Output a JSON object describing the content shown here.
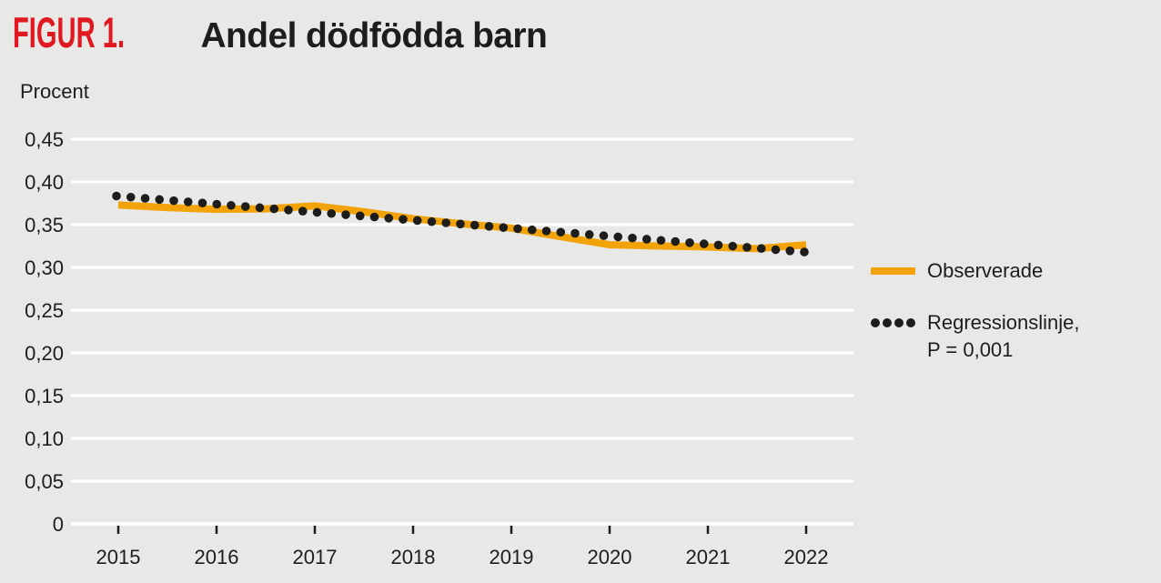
{
  "header": {
    "figure_label": "FIGUR 1.",
    "title": "Andel dödfödda barn"
  },
  "legend": {
    "observed_label": "Observerade",
    "regression_label_line1": "Regressionslinje,",
    "regression_label_line2": "P = 0,001"
  },
  "colors": {
    "background": "#e8e8e7",
    "gridline": "#ffffff",
    "observed_line": "#f2a30a",
    "regression_dots": "#1d1d1b",
    "figure_label_red": "#e0181f",
    "text": "#1d1d1b"
  },
  "chart_data": {
    "type": "line",
    "title": "Andel dödfödda barn",
    "ylabel": "Procent",
    "xlabel": "",
    "grid": true,
    "legend_position": "right",
    "ylim": [
      0,
      0.45
    ],
    "xlim": [
      2015,
      2022
    ],
    "y_ticks": [
      {
        "value": 0,
        "label": "0"
      },
      {
        "value": 0.05,
        "label": "0,05"
      },
      {
        "value": 0.1,
        "label": "0,10"
      },
      {
        "value": 0.15,
        "label": "0,15"
      },
      {
        "value": 0.2,
        "label": "0,20"
      },
      {
        "value": 0.25,
        "label": "0,25"
      },
      {
        "value": 0.3,
        "label": "0,30"
      },
      {
        "value": 0.35,
        "label": "0,35"
      },
      {
        "value": 0.4,
        "label": "0,40"
      },
      {
        "value": 0.45,
        "label": "0,45"
      }
    ],
    "x_ticks": [
      {
        "value": 2015,
        "label": "2015"
      },
      {
        "value": 2016,
        "label": "2016"
      },
      {
        "value": 2017,
        "label": "2017"
      },
      {
        "value": 2018,
        "label": "2018"
      },
      {
        "value": 2019,
        "label": "2019"
      },
      {
        "value": 2020,
        "label": "2020"
      },
      {
        "value": 2021,
        "label": "2021"
      },
      {
        "value": 2022,
        "label": "2022"
      }
    ],
    "series": [
      {
        "name": "Observerade",
        "style": "solid",
        "color": "#f2a30a",
        "points": [
          [
            2015.0,
            0.373
          ],
          [
            2015.5,
            0.37
          ],
          [
            2016.0,
            0.368
          ],
          [
            2016.5,
            0.3685
          ],
          [
            2017.0,
            0.372
          ],
          [
            2017.5,
            0.365
          ],
          [
            2018.0,
            0.357
          ],
          [
            2018.5,
            0.351
          ],
          [
            2019.0,
            0.346
          ],
          [
            2019.5,
            0.336
          ],
          [
            2020.0,
            0.3265
          ],
          [
            2020.5,
            0.325
          ],
          [
            2021.0,
            0.324
          ],
          [
            2021.5,
            0.322
          ],
          [
            2022.0,
            0.3265
          ]
        ]
      },
      {
        "name": "Regressionslinje, P = 0,001",
        "style": "dotted",
        "color": "#1d1d1b",
        "dot_count": 49,
        "points": [
          [
            2015.0,
            0.3835
          ],
          [
            2022.0,
            0.318
          ]
        ]
      }
    ]
  }
}
